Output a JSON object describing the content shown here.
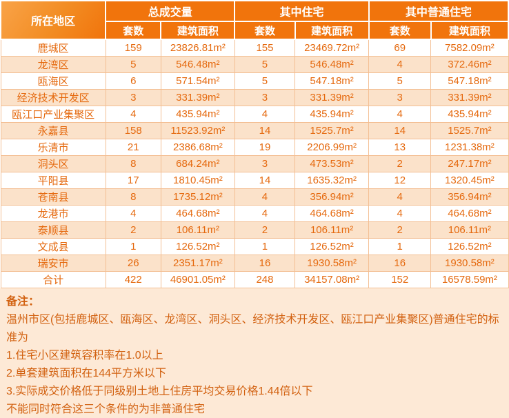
{
  "colors": {
    "header_orange": "#F1740C",
    "header_gradient_light": "#F9A348",
    "row_stripe": "#FBE2CA",
    "page_background": "#FDE9D6",
    "cell_border": "#F3BE92",
    "data_text": "#E5690E",
    "notes_text": "#D26110",
    "header_text": "#FFFFFF"
  },
  "chart_data": {
    "type": "table",
    "title": "",
    "corner_header": "所在地区",
    "group_headers": [
      "总成交量",
      "其中住宅",
      "其中普通住宅"
    ],
    "sub_headers": [
      "套数",
      "建筑面积"
    ],
    "columns": [
      "所在地区",
      "总成交量-套数",
      "总成交量-建筑面积",
      "其中住宅-套数",
      "其中住宅-建筑面积",
      "其中普通住宅-套数",
      "其中普通住宅-建筑面积"
    ],
    "rows": [
      {
        "region": "鹿城区",
        "values": [
          "159",
          "23826.81m²",
          "155",
          "23469.72m²",
          "69",
          "7582.09m²"
        ]
      },
      {
        "region": "龙湾区",
        "values": [
          "5",
          "546.48m²",
          "5",
          "546.48m²",
          "4",
          "372.46m²"
        ]
      },
      {
        "region": "瓯海区",
        "values": [
          "6",
          "571.54m²",
          "5",
          "547.18m²",
          "5",
          "547.18m²"
        ]
      },
      {
        "region": "经济技术开发区",
        "values": [
          "3",
          "331.39m²",
          "3",
          "331.39m²",
          "3",
          "331.39m²"
        ]
      },
      {
        "region": "瓯江口产业集聚区",
        "values": [
          "4",
          "435.94m²",
          "4",
          "435.94m²",
          "4",
          "435.94m²"
        ]
      },
      {
        "region": "永嘉县",
        "values": [
          "158",
          "11523.92m²",
          "14",
          "1525.7m²",
          "14",
          "1525.7m²"
        ]
      },
      {
        "region": "乐清市",
        "values": [
          "21",
          "2386.68m²",
          "19",
          "2206.99m²",
          "13",
          "1231.38m²"
        ]
      },
      {
        "region": "洞头区",
        "values": [
          "8",
          "684.24m²",
          "3",
          "473.53m²",
          "2",
          "247.17m²"
        ]
      },
      {
        "region": "平阳县",
        "values": [
          "17",
          "1810.45m²",
          "14",
          "1635.32m²",
          "12",
          "1320.45m²"
        ]
      },
      {
        "region": "苍南县",
        "values": [
          "8",
          "1735.12m²",
          "4",
          "356.94m²",
          "4",
          "356.94m²"
        ]
      },
      {
        "region": "龙港市",
        "values": [
          "4",
          "464.68m²",
          "4",
          "464.68m²",
          "4",
          "464.68m²"
        ]
      },
      {
        "region": "泰顺县",
        "values": [
          "2",
          "106.11m²",
          "2",
          "106.11m²",
          "2",
          "106.11m²"
        ]
      },
      {
        "region": "文成县",
        "values": [
          "1",
          "126.52m²",
          "1",
          "126.52m²",
          "1",
          "126.52m²"
        ]
      },
      {
        "region": "瑞安市",
        "values": [
          "26",
          "2351.17m²",
          "16",
          "1930.58m²",
          "16",
          "1930.58m²"
        ]
      },
      {
        "region": "合计",
        "values": [
          "422",
          "46901.05m²",
          "248",
          "34157.08m²",
          "152",
          "16578.59m²"
        ]
      }
    ]
  },
  "notes": {
    "title": "备注：",
    "lines": [
      "温州市区(包括鹿城区、瓯海区、龙湾区、洞头区、经济技术开发区、瓯江口产业集聚区)普通住宅的标准为",
      "1.住宅小区建筑容积率在1.0以上",
      "2.单套建筑面积在144平方米以下",
      "3.实际成交价格低于同级别土地上住房平均交易价格1.44倍以下",
      "不能同时符合这三个条件的为非普通住宅"
    ]
  }
}
